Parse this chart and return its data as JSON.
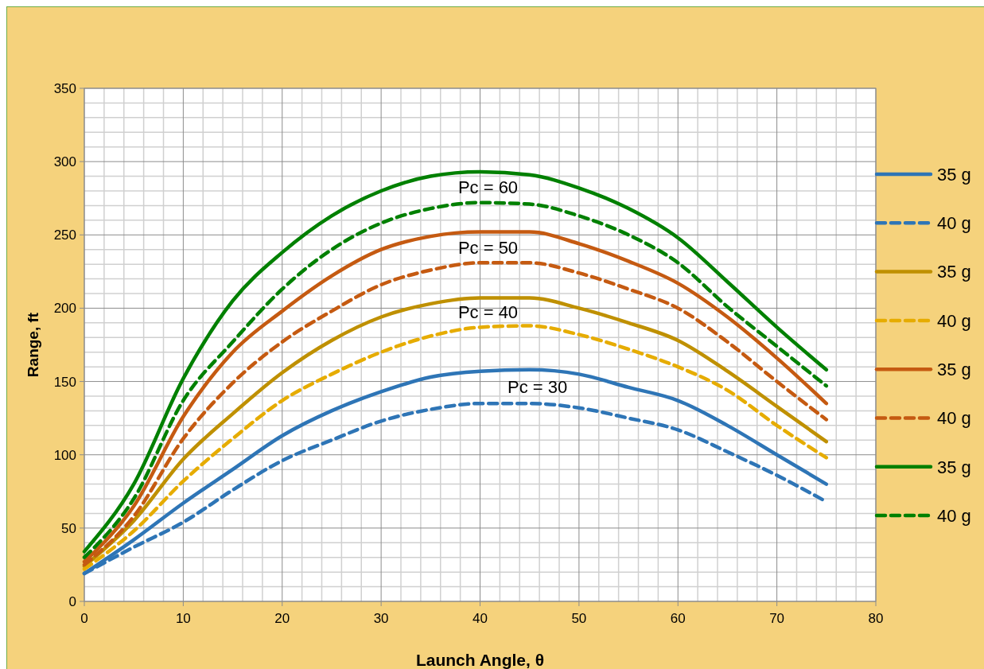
{
  "chart_data": {
    "type": "line",
    "xlabel": "Launch Angle, θ",
    "ylabel": "Range, ft",
    "x": [
      0,
      5,
      10,
      15,
      20,
      25,
      30,
      35,
      40,
      45,
      50,
      55,
      60,
      65,
      70,
      75
    ],
    "series": [
      {
        "name": "35 g",
        "color": "#2e75b6",
        "line_style": "solid",
        "values": [
          19,
          42,
          67,
          90,
          113,
          130,
          143,
          153,
          157,
          158,
          155,
          146,
          137,
          120,
          100,
          80
        ]
      },
      {
        "name": "40 g",
        "color": "#2e75b6",
        "line_style": "dashed",
        "values": [
          19,
          37,
          54,
          76,
          96,
          110,
          123,
          131,
          135,
          135,
          132,
          125,
          117,
          102,
          86,
          68
        ]
      },
      {
        "name": "35 g",
        "color": "#bf9000",
        "line_style": "solid",
        "values": [
          24,
          55,
          97,
          128,
          156,
          178,
          194,
          203,
          207,
          207,
          200,
          190,
          178,
          157,
          133,
          109
        ]
      },
      {
        "name": "40 g",
        "color": "#e6ac00",
        "line_style": "dashed",
        "values": [
          22,
          48,
          82,
          111,
          137,
          155,
          170,
          181,
          187,
          188,
          182,
          172,
          160,
          144,
          120,
          98
        ]
      },
      {
        "name": "35 g",
        "color": "#c55a11",
        "line_style": "solid",
        "values": [
          27,
          65,
          126,
          170,
          198,
          222,
          240,
          249,
          252,
          252,
          244,
          232,
          217,
          194,
          166,
          135
        ]
      },
      {
        "name": "40 g",
        "color": "#c55a11",
        "line_style": "dashed",
        "values": [
          25,
          58,
          111,
          149,
          177,
          198,
          216,
          226,
          231,
          231,
          224,
          213,
          200,
          177,
          150,
          124
        ]
      },
      {
        "name": "35 g",
        "color": "#008000",
        "line_style": "solid",
        "values": [
          34,
          80,
          152,
          205,
          238,
          263,
          280,
          290,
          293,
          291,
          282,
          268,
          248,
          218,
          187,
          158
        ]
      },
      {
        "name": "40 g",
        "color": "#008000",
        "line_style": "dashed",
        "values": [
          30,
          70,
          137,
          177,
          213,
          240,
          258,
          268,
          272,
          271,
          263,
          250,
          231,
          201,
          174,
          147
        ]
      }
    ],
    "annotations": [
      "Pc = 60",
      "Pc = 50",
      "Pc = 40",
      "Pc = 30"
    ],
    "xlim": [
      0,
      80
    ],
    "xticks": [
      0,
      10,
      20,
      30,
      40,
      50,
      60,
      70,
      80
    ],
    "ylim": [
      0,
      350
    ],
    "yticks": [
      0,
      50,
      100,
      150,
      200,
      250,
      300,
      350
    ],
    "grid": true,
    "legend": "right"
  }
}
